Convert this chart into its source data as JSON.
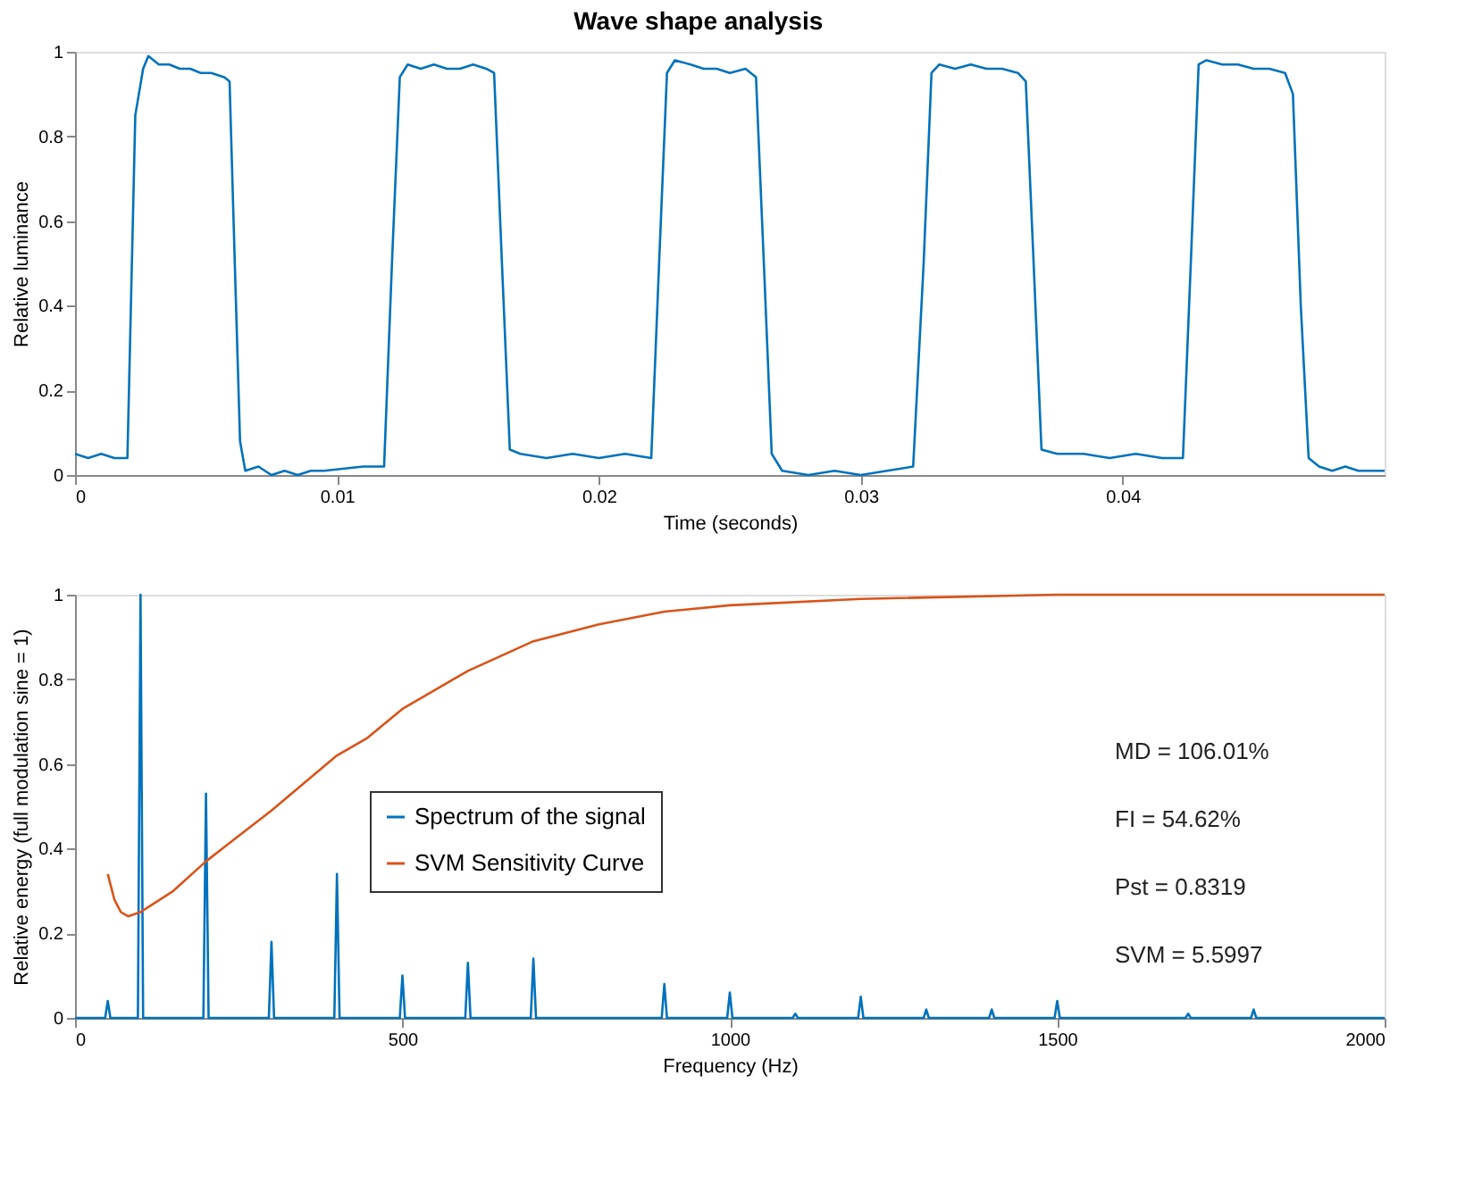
{
  "chart_data": [
    {
      "type": "line",
      "title": "Wave shape analysis",
      "xlabel": "Time (seconds)",
      "ylabel": "Relative luminance",
      "xlim": [
        0,
        0.05
      ],
      "xticks": [
        0,
        0.01,
        0.02,
        0.03,
        0.04
      ],
      "ylim": [
        0,
        1
      ],
      "yticks": [
        0,
        0.2,
        0.4,
        0.6,
        0.8,
        1
      ],
      "grid": false,
      "legend": false,
      "marker": "none",
      "line_style": "solid",
      "series": [
        {
          "color": "#0072bd",
          "x": [
            0,
            0.0005,
            0.001,
            0.0015,
            0.002,
            0.0023,
            0.0026,
            0.0028,
            0.0032,
            0.0036,
            0.004,
            0.0044,
            0.0048,
            0.0052,
            0.0057,
            0.0059,
            0.0061,
            0.0063,
            0.0065,
            0.007,
            0.0075,
            0.008,
            0.0085,
            0.009,
            0.0095,
            0.011,
            0.0118,
            0.0121,
            0.0124,
            0.0127,
            0.0132,
            0.0137,
            0.0142,
            0.0147,
            0.0152,
            0.0157,
            0.016,
            0.0163,
            0.0166,
            0.017,
            0.018,
            0.019,
            0.02,
            0.021,
            0.022,
            0.0223,
            0.0226,
            0.0229,
            0.0235,
            0.024,
            0.0245,
            0.025,
            0.0256,
            0.026,
            0.0263,
            0.0266,
            0.027,
            0.028,
            0.029,
            0.03,
            0.031,
            0.032,
            0.0324,
            0.0327,
            0.033,
            0.0336,
            0.0342,
            0.0348,
            0.0354,
            0.036,
            0.0363,
            0.0366,
            0.0369,
            0.0375,
            0.0385,
            0.0395,
            0.0405,
            0.0415,
            0.0423,
            0.0426,
            0.0429,
            0.0432,
            0.0438,
            0.0444,
            0.045,
            0.0456,
            0.0462,
            0.0465,
            0.0468,
            0.0471,
            0.0475,
            0.048,
            0.0485,
            0.049,
            0.0495,
            0.05
          ],
          "values": [
            0.05,
            0.04,
            0.05,
            0.04,
            0.04,
            0.85,
            0.96,
            0.99,
            0.97,
            0.97,
            0.96,
            0.96,
            0.95,
            0.95,
            0.94,
            0.93,
            0.5,
            0.08,
            0.01,
            0.02,
            0.0,
            0.01,
            0.0,
            0.01,
            0.01,
            0.02,
            0.02,
            0.5,
            0.94,
            0.97,
            0.96,
            0.97,
            0.96,
            0.96,
            0.97,
            0.96,
            0.95,
            0.5,
            0.06,
            0.05,
            0.04,
            0.05,
            0.04,
            0.05,
            0.04,
            0.5,
            0.95,
            0.98,
            0.97,
            0.96,
            0.96,
            0.95,
            0.96,
            0.94,
            0.5,
            0.05,
            0.01,
            0.0,
            0.01,
            0.0,
            0.01,
            0.02,
            0.5,
            0.95,
            0.97,
            0.96,
            0.97,
            0.96,
            0.96,
            0.95,
            0.93,
            0.5,
            0.06,
            0.05,
            0.05,
            0.04,
            0.05,
            0.04,
            0.04,
            0.5,
            0.97,
            0.98,
            0.97,
            0.97,
            0.96,
            0.96,
            0.95,
            0.9,
            0.4,
            0.04,
            0.02,
            0.01,
            0.02,
            0.01,
            0.01,
            0.01
          ]
        }
      ]
    },
    {
      "type": "line",
      "xlabel": "Frequency (Hz)",
      "ylabel": "Relative energy (full modulation sine = 1)",
      "xlim": [
        0,
        2000
      ],
      "xticks": [
        0,
        500,
        1000,
        1500,
        2000
      ],
      "ylim": [
        0,
        1
      ],
      "yticks": [
        0,
        0.2,
        0.4,
        0.6,
        0.8,
        1
      ],
      "grid": false,
      "legend": "center",
      "marker": "none",
      "line_style": "solid",
      "annotations": [
        "MD = 106.01%",
        "FI = 54.62%",
        "Pst = 0.8319",
        "SVM = 5.5997"
      ],
      "series": [
        {
          "name": "Spectrum of the signal",
          "color": "#0072bd",
          "x": [
            0,
            46,
            50,
            54,
            96,
            100,
            104,
            196,
            200,
            204,
            296,
            300,
            304,
            396,
            400,
            404,
            496,
            500,
            504,
            596,
            600,
            604,
            696,
            700,
            704,
            896,
            900,
            904,
            996,
            1000,
            1004,
            1096,
            1100,
            1104,
            1196,
            1200,
            1204,
            1296,
            1300,
            1304,
            1396,
            1400,
            1404,
            1496,
            1500,
            1504,
            1696,
            1700,
            1704,
            1796,
            1800,
            1804,
            2000
          ],
          "values": [
            0,
            0,
            0.04,
            0,
            0,
            1,
            0,
            0,
            0.53,
            0,
            0,
            0.18,
            0,
            0,
            0.34,
            0,
            0,
            0.1,
            0,
            0,
            0.13,
            0,
            0,
            0.14,
            0,
            0,
            0.08,
            0,
            0,
            0.06,
            0,
            0,
            0.01,
            0,
            0,
            0.05,
            0,
            0,
            0.02,
            0,
            0,
            0.02,
            0,
            0,
            0.04,
            0,
            0,
            0.01,
            0,
            0,
            0.02,
            0,
            0
          ]
        },
        {
          "name": "SVM Sensitivity Curve",
          "color": "#d95319",
          "x": [
            50,
            60,
            70,
            81,
            100,
            150,
            200,
            300,
            400,
            445,
            500,
            600,
            700,
            800,
            900,
            1000,
            1200,
            1500,
            2000
          ],
          "values": [
            0.34,
            0.28,
            0.25,
            0.24,
            0.25,
            0.3,
            0.37,
            0.49,
            0.62,
            0.66,
            0.73,
            0.82,
            0.89,
            0.93,
            0.96,
            0.975,
            0.99,
            1,
            1
          ]
        }
      ]
    }
  ]
}
